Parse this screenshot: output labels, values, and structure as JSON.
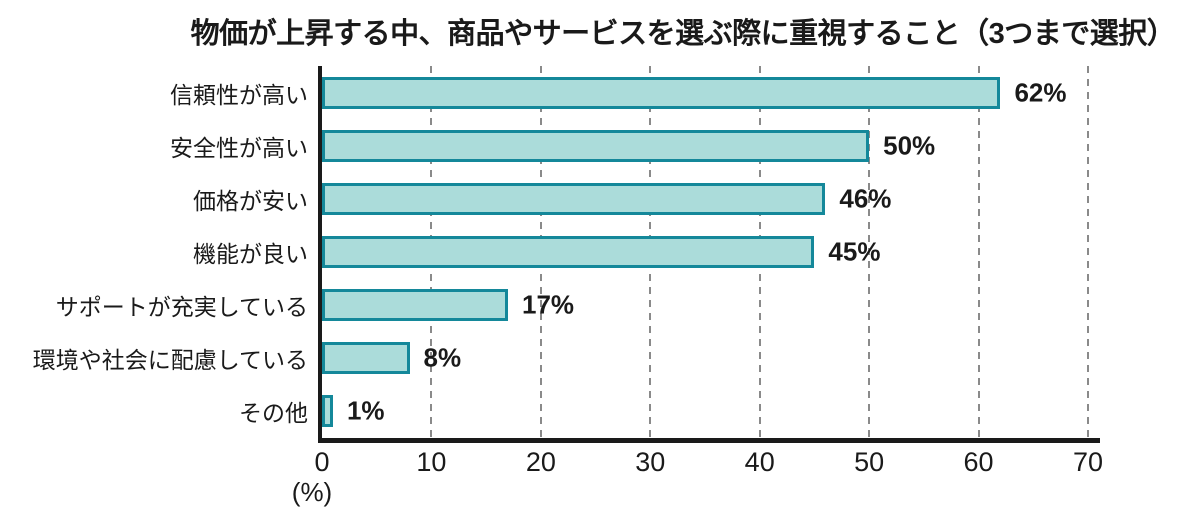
{
  "chart_data": {
    "type": "bar",
    "orientation": "horizontal",
    "title": "物価が上昇する中、商品やサービスを選ぶ際に重視すること（3つまで選択）",
    "categories": [
      "信頼性が高い",
      "安全性が高い",
      "価格が安い",
      "機能が良い",
      "サポートが充実している",
      "環境や社会に配慮している",
      "その他"
    ],
    "values": [
      62,
      50,
      46,
      45,
      17,
      8,
      1
    ],
    "value_labels": [
      "62%",
      "50%",
      "46%",
      "45%",
      "17%",
      "8%",
      "1%"
    ],
    "xlabel": "(%)",
    "xlim": [
      0,
      70
    ],
    "xticks": [
      0,
      10,
      20,
      30,
      40,
      50,
      60,
      70
    ],
    "xtick_labels": [
      "0",
      "10",
      "20",
      "30",
      "40",
      "50",
      "60",
      "70"
    ],
    "grid": "dashed-vertical",
    "legend": "none",
    "colors": {
      "bar_fill": "#abdcda",
      "bar_border": "#14889a",
      "axis": "#1a1a1a",
      "gridline": "#8a8a8a",
      "text": "#1a1a1a"
    }
  }
}
